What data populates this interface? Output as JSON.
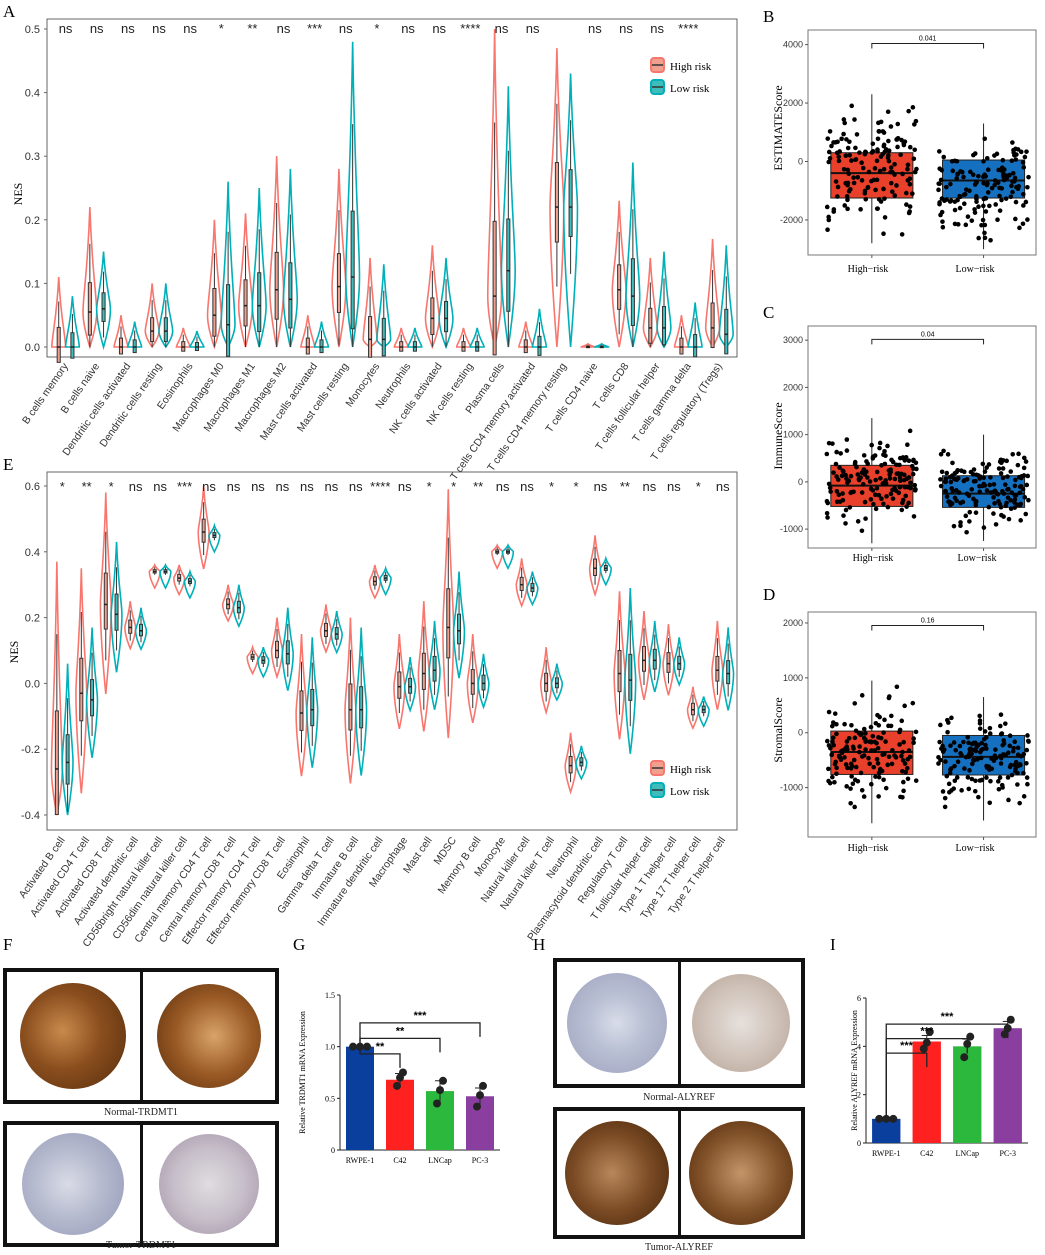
{
  "colors": {
    "high": "#f8766d",
    "low": "#00b0b8",
    "high_box": "#e8402b",
    "low_box": "#1670c0",
    "g_rwpe": "#0a3f9e",
    "g_c42": "#ff2020",
    "g_lncap": "#2bb83c",
    "g_pc3": "#8a3fa0"
  },
  "panel_labels": {
    "A": "A",
    "B": "B",
    "C": "C",
    "D": "D",
    "E": "E",
    "F": "F",
    "G": "G",
    "H": "H",
    "I": "I"
  },
  "panel_a": {
    "ylabel": "NES",
    "ylim": [
      0,
      0.5
    ],
    "yticks": [
      "0.0",
      "0.1",
      "0.2",
      "0.3",
      "0.4",
      "0.5"
    ],
    "legend": [
      "High risk",
      "Low risk"
    ],
    "categories": [
      "B cells memory",
      "B cells naive",
      "Dendritic cells activated",
      "Dendritic cells resting",
      "Eosinophils",
      "Macrophages M0",
      "Macrophages M1",
      "Macrophages M2",
      "Mast cells activated",
      "Mast cells resting",
      "Monocytes",
      "Neutrophils",
      "NK cells activated",
      "NK cells resting",
      "Plasma cells",
      "T cells CD4 memory activated",
      "T cells CD4 memory resting",
      "T cells CD4 naive",
      "T cells CD8",
      "T cells follicular helper",
      "T cells gamma delta",
      "T cells regulatory (Tregs)"
    ],
    "significance": [
      "ns",
      "ns",
      "ns",
      "ns",
      "ns",
      "*",
      "**",
      "ns",
      "***",
      "ns",
      "*",
      "ns",
      "ns",
      "****",
      "ns",
      "ns",
      "",
      "ns",
      "ns",
      "ns",
      "****",
      ""
    ]
  },
  "panel_e": {
    "ylabel": "NES",
    "ylim": [
      -0.4,
      0.6
    ],
    "yticks": [
      "-0.4",
      "-0.2",
      "0.0",
      "0.2",
      "0.4",
      "0.6"
    ],
    "legend": [
      "High risk",
      "Low risk"
    ],
    "categories": [
      "Activated B cell",
      "Activated CD4 T cell",
      "Activated CD8 T cell",
      "Activated dendritic cell",
      "CD56bright natural killer cell",
      "CD56dim natural killer cell",
      "Central memory CD4 T cell",
      "Central memory CD8 T cell",
      "Effector memory CD4 T cell",
      "Effector memory CD8 T cell",
      "Eosinophil",
      "Gamma delta T cell",
      "Immature B cell",
      "Immature dendritic cell",
      "Macrophage",
      "Mast cell",
      "MDSC",
      "Memory B cell",
      "Monocyte",
      "Natural killer cell",
      "Natural killer T cell",
      "Neutrophil",
      "Plasmacytoid dendritic cell",
      "Regulatory T cell",
      "T follicular helper cell",
      "Type 1 T helper cell",
      "Type 17 T helper cell",
      "Type 2 T helper cell"
    ],
    "significance": [
      "*",
      "**",
      "*",
      "ns",
      "ns",
      "***",
      "ns",
      "ns",
      "ns",
      "ns",
      "ns",
      "ns",
      "ns",
      "****",
      "ns",
      "*",
      "*",
      "**",
      "ns",
      "ns",
      "*",
      "*",
      "ns",
      "**",
      "ns",
      "ns",
      "*",
      "ns"
    ]
  },
  "panel_b": {
    "ylabel": "ESTIMATEScore",
    "yticks": [
      "-2000",
      "0",
      "2000",
      "4000"
    ],
    "ylim": [
      -3200,
      4500
    ],
    "groups": [
      "High−risk",
      "Low−risk"
    ],
    "pvalue": "0.041"
  },
  "panel_c": {
    "ylabel": "ImmuneScore",
    "yticks": [
      "-1000",
      "0",
      "1000",
      "2000",
      "3000"
    ],
    "ylim": [
      -1400,
      3300
    ],
    "groups": [
      "High−risk",
      "Low−risk"
    ],
    "pvalue": "0.04"
  },
  "panel_d": {
    "ylabel": "StromalScore",
    "yticks": [
      "-1000",
      "0",
      "1000",
      "2000"
    ],
    "ylim": [
      -1900,
      2200
    ],
    "groups": [
      "High−risk",
      "Low−risk"
    ],
    "pvalue": "0.16"
  },
  "panel_f": {
    "top_caption": "Normal-TRDMT1",
    "bottom_caption": "Tumor-TRDMT1"
  },
  "panel_h": {
    "top_caption": "Normal-ALYREF",
    "bottom_caption": "Tumor-ALYREF"
  },
  "chart_data": [
    {
      "panel": "A",
      "type": "violin",
      "title": "",
      "ylabel": "NES",
      "ylim": [
        0,
        0.5
      ],
      "categories": [
        "B cells memory",
        "B cells naive",
        "Dendritic cells activated",
        "Dendritic cells resting",
        "Eosinophils",
        "Macrophages M0",
        "Macrophages M1",
        "Macrophages M2",
        "Mast cells activated",
        "Mast cells resting",
        "Monocytes",
        "Neutrophils",
        "NK cells activated",
        "NK cells resting",
        "Plasma cells",
        "T cells CD4 memory activated",
        "T cells CD4 memory resting",
        "T cells CD4 naive",
        "T cells CD8",
        "T cells follicular helper",
        "T cells gamma delta",
        "T cells regulatory (Tregs)"
      ],
      "series": [
        {
          "name": "High risk",
          "median": [
            0,
            0.055,
            0,
            0.025,
            0,
            0.05,
            0.065,
            0.09,
            0,
            0.095,
            0.012,
            0,
            0.045,
            0,
            0.08,
            0,
            0.22,
            0,
            0.09,
            0.03,
            0,
            0.03
          ],
          "max": [
            0.11,
            0.22,
            0.05,
            0.1,
            0.03,
            0.2,
            0.21,
            0.3,
            0.05,
            0.28,
            0.14,
            0.03,
            0.16,
            0.03,
            0.5,
            0.04,
            0.47,
            0.005,
            0.23,
            0.14,
            0.05,
            0.17
          ]
        },
        {
          "name": "Low risk",
          "median": [
            0,
            0.06,
            0,
            0.025,
            0,
            0.035,
            0.065,
            0.075,
            0,
            0.11,
            0.012,
            0,
            0.045,
            0,
            0.12,
            0,
            0.22,
            0,
            0.08,
            0.03,
            0,
            0.02
          ],
          "max": [
            0.08,
            0.15,
            0.04,
            0.1,
            0.025,
            0.26,
            0.25,
            0.28,
            0.04,
            0.48,
            0.13,
            0.03,
            0.14,
            0.03,
            0.41,
            0.06,
            0.43,
            0.005,
            0.29,
            0.15,
            0.07,
            0.16
          ]
        }
      ]
    },
    {
      "panel": "E",
      "type": "violin",
      "ylabel": "NES",
      "ylim": [
        -0.4,
        0.6
      ],
      "series": [
        {
          "name": "High risk",
          "median": [
            -0.26,
            -0.03,
            0.24,
            0.17,
            0.34,
            0.32,
            0.46,
            0.24,
            0.08,
            0.1,
            -0.09,
            0.16,
            -0.08,
            0.31,
            -0.01,
            0.03,
            0.17,
            0,
            0.4,
            0.3,
            0,
            -0.25,
            0.35,
            0.03,
            0.07,
            0.06,
            -0.08,
            0.04
          ],
          "max": [
            0.37,
            0.35,
            0.58,
            0.25,
            0.36,
            0.36,
            0.6,
            0.3,
            0.11,
            0.2,
            0.15,
            0.24,
            0.2,
            0.36,
            0.15,
            0.25,
            0.59,
            0.15,
            0.42,
            0.38,
            0.11,
            -0.15,
            0.45,
            0.28,
            0.22,
            0.18,
            -0.01,
            0.19
          ]
        },
        {
          "name": "Low risk",
          "median": [
            -0.24,
            -0.05,
            0.21,
            0.16,
            0.34,
            0.31,
            0.45,
            0.23,
            0.07,
            0.09,
            -0.08,
            0.15,
            -0.08,
            0.32,
            -0.01,
            0.04,
            0.16,
            0,
            0.4,
            0.29,
            0,
            -0.24,
            0.35,
            0.01,
            0.07,
            0.06,
            -0.08,
            0.03
          ],
          "max": [
            0.06,
            0.17,
            0.43,
            0.23,
            0.36,
            0.34,
            0.48,
            0.3,
            0.11,
            0.23,
            0.14,
            0.22,
            0.17,
            0.35,
            0.08,
            0.19,
            0.34,
            0.09,
            0.42,
            0.34,
            0.06,
            -0.19,
            0.38,
            0.29,
            0.19,
            0.14,
            -0.04,
            0.17
          ]
        }
      ]
    },
    {
      "panel": "B",
      "type": "box",
      "ylabel": "ESTIMATEScore",
      "categories": [
        "High−risk",
        "Low−risk"
      ],
      "q1": [
        -1250,
        -1250
      ],
      "median": [
        -400,
        -650
      ],
      "q3": [
        300,
        50
      ],
      "whisker_low": [
        -2800,
        -3000
      ],
      "whisker_high": [
        2300,
        1300
      ],
      "pvalue": "0.041"
    },
    {
      "panel": "C",
      "type": "box",
      "ylabel": "ImmuneScore",
      "categories": [
        "High−risk",
        "Low−risk"
      ],
      "q1": [
        -520,
        -540
      ],
      "median": [
        -80,
        -250
      ],
      "q3": [
        350,
        130
      ],
      "whisker_low": [
        -1300,
        -1250
      ],
      "whisker_high": [
        1350,
        1000
      ],
      "pvalue": "0.04"
    },
    {
      "panel": "D",
      "type": "box",
      "ylabel": "StromalScore",
      "categories": [
        "High−risk",
        "Low−risk"
      ],
      "q1": [
        -760,
        -770
      ],
      "median": [
        -350,
        -440
      ],
      "q3": [
        30,
        -50
      ],
      "whisker_low": [
        -1650,
        -1600
      ],
      "whisker_high": [
        950,
        650
      ],
      "pvalue": "0.16"
    },
    {
      "panel": "G",
      "type": "bar",
      "ylabel": "Relative TRDMT1 mRNA Expression",
      "ylim": [
        0,
        1.5
      ],
      "yticks": [
        "0",
        "0.5",
        "1.0",
        "1.5"
      ],
      "categories": [
        "RWPE-1",
        "C42",
        "LNCap",
        "PC-3"
      ],
      "values": [
        1.0,
        0.68,
        0.57,
        0.52
      ],
      "sem": [
        0,
        0.06,
        0.1,
        0.08
      ],
      "points": [
        [
          1,
          1,
          1
        ],
        [
          0.62,
          0.7,
          0.75
        ],
        [
          0.45,
          0.58,
          0.67
        ],
        [
          0.42,
          0.53,
          0.62
        ]
      ],
      "comparisons": [
        {
          "to": "C42",
          "label": "**"
        },
        {
          "to": "LNCap",
          "label": "**"
        },
        {
          "to": "PC-3",
          "label": "***"
        }
      ]
    },
    {
      "panel": "I",
      "type": "bar",
      "ylabel": "Relative ALYREF mRNA Expression",
      "ylim": [
        0,
        6
      ],
      "yticks": [
        "0",
        "2",
        "4",
        "6"
      ],
      "categories": [
        "RWPE-1",
        "C42",
        "LNCap",
        "PC-3"
      ],
      "values": [
        1.0,
        4.2,
        4.0,
        4.75
      ],
      "sem": [
        0,
        0.25,
        0.3,
        0.28
      ],
      "points": [
        [
          1,
          1,
          1
        ],
        [
          3.9,
          4.15,
          4.6
        ],
        [
          3.55,
          4.1,
          4.4
        ],
        [
          4.5,
          4.75,
          5.1
        ]
      ],
      "comparisons": [
        {
          "to": "C42",
          "label": "***"
        },
        {
          "to": "LNCap",
          "label": "***"
        },
        {
          "to": "PC-3",
          "label": "***"
        }
      ]
    }
  ]
}
